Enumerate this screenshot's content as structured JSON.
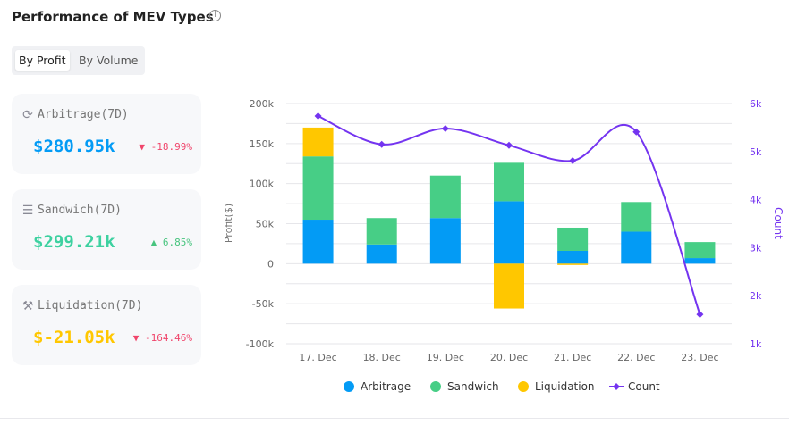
{
  "header": {
    "title": "Performance of MEV Types",
    "info_icon": "info-icon"
  },
  "toggle": {
    "options": [
      "By Profit",
      "By Volume"
    ],
    "selected": "By Profit"
  },
  "cards": [
    {
      "label": "Arbitrage(7D)",
      "value": "$280.95k",
      "change": "-18.99%",
      "direction": "down",
      "icon": "arbitrage-icon",
      "value_color": "#039BF5",
      "change_color": "#F0456B"
    },
    {
      "label": "Sandwich(7D)",
      "value": "$299.21k",
      "change": "6.85%",
      "direction": "up",
      "icon": "sandwich-icon",
      "value_color": "#3DD1A0",
      "change_color": "#47C47E"
    },
    {
      "label": "Liquidation(7D)",
      "value": "$-21.05k",
      "change": "-164.46%",
      "direction": "down",
      "icon": "gavel-icon",
      "value_color": "#FFC700",
      "change_color": "#F0456B"
    }
  ],
  "chart_data": {
    "type": "bar",
    "stacked": true,
    "categories": [
      "17. Dec",
      "18. Dec",
      "19. Dec",
      "20. Dec",
      "21. Dec",
      "22. Dec",
      "23. Dec"
    ],
    "series": [
      {
        "name": "Arbitrage",
        "type": "bar",
        "color": "#039BF5",
        "values": [
          55000,
          24000,
          57000,
          78000,
          16000,
          40000,
          7000
        ]
      },
      {
        "name": "Sandwich",
        "type": "bar",
        "color": "#47CE86",
        "values": [
          79000,
          33000,
          53000,
          48000,
          29000,
          37000,
          20000
        ]
      },
      {
        "name": "Liquidation",
        "type": "bar",
        "color": "#FFC700",
        "values": [
          36000,
          0,
          0,
          -56000,
          -1500,
          0,
          0
        ]
      },
      {
        "name": "Count",
        "type": "line",
        "axis": "right",
        "color": "#7434F0",
        "values": [
          5740,
          5150,
          5480,
          5130,
          4810,
          5410,
          1610
        ]
      }
    ],
    "ylabel": "Profit($)",
    "y2label": "Count",
    "ylim": [
      -100000,
      200000
    ],
    "y2lim": [
      1000,
      6000
    ],
    "yticks": [
      "-100k",
      "-50k",
      "0",
      "50k",
      "100k",
      "150k",
      "200k"
    ],
    "y2ticks": [
      "1k",
      "2k",
      "3k",
      "4k",
      "5k",
      "6k"
    ],
    "grid": true,
    "legend": "bottom"
  }
}
